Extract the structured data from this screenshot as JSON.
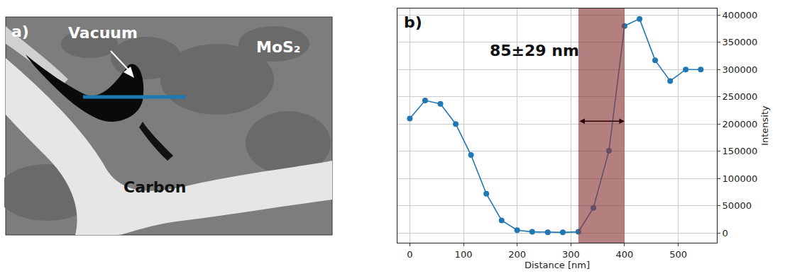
{
  "chart_data": {
    "type": "line",
    "panel_label": "b)",
    "x": [
      0,
      28.5,
      57,
      85.5,
      114,
      142.5,
      171,
      200,
      228,
      257,
      285,
      314,
      342,
      371,
      400,
      428,
      457,
      485,
      514,
      542
    ],
    "values": [
      210000,
      243000,
      237000,
      200000,
      143000,
      72000,
      23000,
      5000,
      2000,
      1000,
      1000,
      2000,
      46000,
      151000,
      380000,
      393000,
      317000,
      279000,
      300000,
      300000
    ],
    "color": "#1f77b4",
    "marker": "circle",
    "xlim": [
      -23,
      572
    ],
    "xticks": [
      0,
      100,
      200,
      300,
      400,
      500
    ],
    "ylim": [
      -18000,
      412000
    ],
    "yticks": [
      0,
      50000,
      100000,
      150000,
      200000,
      250000,
      300000,
      350000,
      400000
    ],
    "xlabel": "Distance [nm]",
    "ylabel": "Intensity",
    "grid": true,
    "annotation": {
      "text": "85±29 nm",
      "x": 232,
      "y": 335000
    },
    "shaded_region": {
      "x": [
        314,
        400
      ],
      "color": "#8b3a3a"
    },
    "arrow": {
      "x": [
        314,
        400
      ],
      "y": 205000
    }
  },
  "image_panel": {
    "label": "a)",
    "texts": {
      "vacuum": "Vacuum",
      "mos2": "MoS₂",
      "carbon": "Carbon"
    }
  }
}
